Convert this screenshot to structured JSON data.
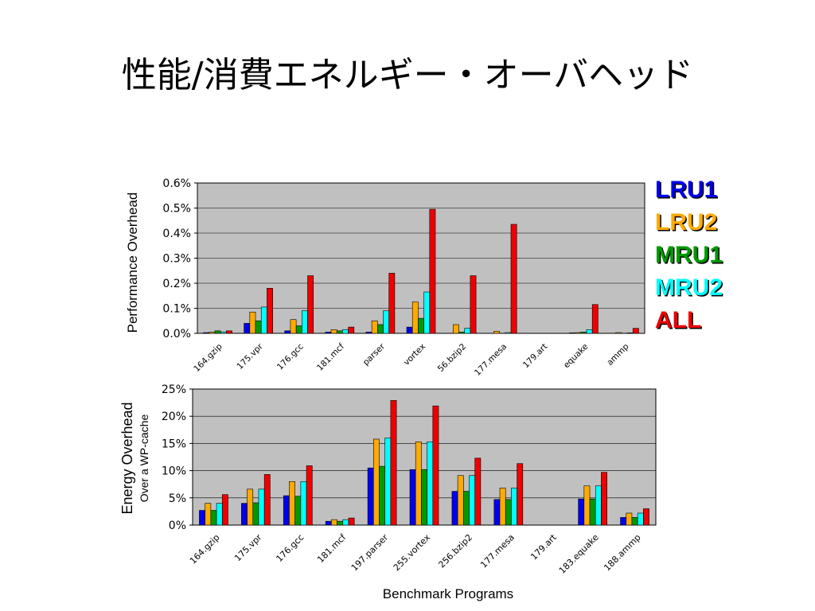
{
  "slide_title": "性能/消費エネルギー・オーバヘッド",
  "legend": [
    {
      "label": "LRU1",
      "color": "#0000ee"
    },
    {
      "label": "LRU2",
      "color": "#ffaa00"
    },
    {
      "label": "MRU1",
      "color": "#009900"
    },
    {
      "label": "MRU2",
      "color": "#00ffff"
    },
    {
      "label": "ALL",
      "color": "#ee0000"
    }
  ],
  "chart_data": [
    {
      "type": "bar",
      "ylabel": "Performance Overhead",
      "ylim": [
        0,
        0.6
      ],
      "yticks": [
        "0.0%",
        "0.1%",
        "0.2%",
        "0.3%",
        "0.4%",
        "0.5%",
        "0.6%"
      ],
      "grid": true,
      "categories": [
        "164.gzip",
        "175.vpr",
        "176.gcc",
        "181.mcf",
        "197.parser",
        "255.vortex",
        "256.bzip2",
        "177.mesa",
        "179.art",
        "183.equake",
        "188.ammp"
      ],
      "category_labels": [
        "164.gzip",
        "175.vpr",
        "176.gcc",
        "181.mcf",
        "parser",
        "vortex",
        "56.bzip2",
        "177.mesa",
        "179.art",
        "equake",
        "ammp"
      ],
      "series": [
        {
          "name": "LRU1",
          "values": [
            0.003,
            0.04,
            0.01,
            0.005,
            0.005,
            0.025,
            0.0,
            0.0,
            0.0,
            0.002,
            0.0
          ]
        },
        {
          "name": "LRU2",
          "values": [
            0.005,
            0.085,
            0.055,
            0.015,
            0.05,
            0.125,
            0.035,
            0.008,
            0.0,
            0.003,
            0.003
          ]
        },
        {
          "name": "MRU1",
          "values": [
            0.01,
            0.05,
            0.03,
            0.01,
            0.035,
            0.06,
            0.005,
            0.0,
            0.0,
            0.005,
            0.0
          ]
        },
        {
          "name": "MRU2",
          "values": [
            0.005,
            0.105,
            0.09,
            0.015,
            0.09,
            0.165,
            0.02,
            0.003,
            0.0,
            0.015,
            0.002
          ]
        },
        {
          "name": "ALL",
          "values": [
            0.01,
            0.18,
            0.23,
            0.025,
            0.24,
            0.495,
            0.23,
            0.435,
            0.0,
            0.115,
            0.02
          ]
        }
      ]
    },
    {
      "type": "bar",
      "ylabel": "Energy Overhead",
      "ylabel2": "Over a WP-cache",
      "xlabel": "Benchmark Programs",
      "ylim": [
        0,
        25
      ],
      "yticks": [
        "0%",
        "5%",
        "10%",
        "15%",
        "20%",
        "25%"
      ],
      "grid": true,
      "categories": [
        "164.gzip",
        "175.vpr",
        "176.gcc",
        "181.mcf",
        "197.parser",
        "255.vortex",
        "256.bzip2",
        "177.mesa",
        "179.art",
        "183.equake",
        "188.ammp"
      ],
      "category_labels": [
        "164.gzip",
        "175.vpr",
        "176.gcc",
        "181.mcf",
        "197.parser",
        "255.vortex",
        "256.bzip2",
        "177.mesa",
        "179.art",
        "183.equake",
        "188.ammp"
      ],
      "series": [
        {
          "name": "LRU1",
          "values": [
            2.7,
            4.0,
            5.4,
            0.7,
            10.5,
            10.2,
            6.2,
            4.7,
            0,
            4.8,
            1.4
          ]
        },
        {
          "name": "LRU2",
          "values": [
            4.0,
            6.6,
            8.0,
            1.0,
            15.8,
            15.3,
            9.1,
            6.8,
            0,
            7.2,
            2.2
          ]
        },
        {
          "name": "MRU1",
          "values": [
            2.7,
            4.1,
            5.3,
            0.7,
            10.8,
            10.2,
            6.2,
            4.7,
            0,
            4.8,
            1.4
          ]
        },
        {
          "name": "MRU2",
          "values": [
            4.0,
            6.6,
            8.0,
            1.0,
            16.0,
            15.3,
            9.1,
            6.8,
            0,
            7.2,
            2.2
          ]
        },
        {
          "name": "ALL",
          "values": [
            5.6,
            9.3,
            10.9,
            1.3,
            22.9,
            21.9,
            12.3,
            11.3,
            0,
            9.7,
            3.0
          ]
        }
      ]
    }
  ]
}
